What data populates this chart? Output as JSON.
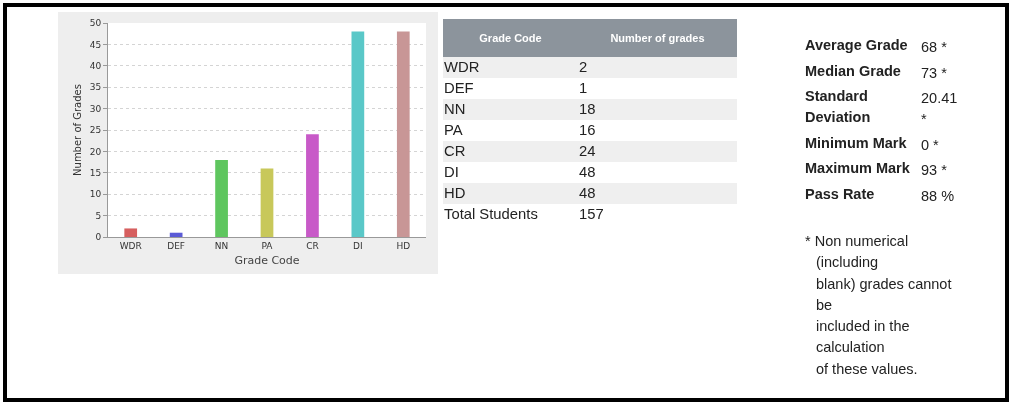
{
  "chart_data": [
    {
      "type": "bar",
      "xlabel": "Grade Code",
      "ylabel": "Number of Grades",
      "categories": [
        "WDR",
        "DEF",
        "NN",
        "PA",
        "CR",
        "DI",
        "HD"
      ],
      "values": [
        2,
        1,
        18,
        16,
        24,
        48,
        48
      ],
      "colors": [
        "#d65f5f",
        "#5b5bd6",
        "#5fc65f",
        "#c8c85a",
        "#c85ac8",
        "#5ac8c8",
        "#c89696"
      ],
      "ylim": [
        0,
        50
      ],
      "yticks": [
        0,
        5,
        10,
        15,
        20,
        25,
        30,
        35,
        40,
        45,
        50
      ],
      "grid": "y"
    },
    {
      "type": "other",
      "categories": [
        "WDR",
        "DEF",
        "NN",
        "PA",
        "CR",
        "DI",
        "HD",
        "Total Students"
      ],
      "values": [
        2,
        1,
        18,
        16,
        24,
        48,
        48,
        157
      ],
      "data_labels": true,
      "annotations": [
        "Grade Code",
        "Number of grades"
      ]
    },
    {
      "type": "other",
      "categories": [
        "Average Grade",
        "Median Grade",
        "Standard Deviation",
        "Minimum Mark",
        "Maximum Mark",
        "Pass Rate"
      ],
      "value_labels": [
        "68 *",
        "73 *",
        "20.41 *",
        "0 *",
        "93 *",
        "88 %"
      ],
      "annotations": [
        "* Non numerical (including\nblank) grades cannot be\nincluded in the calculation\nof these values."
      ]
    }
  ]
}
